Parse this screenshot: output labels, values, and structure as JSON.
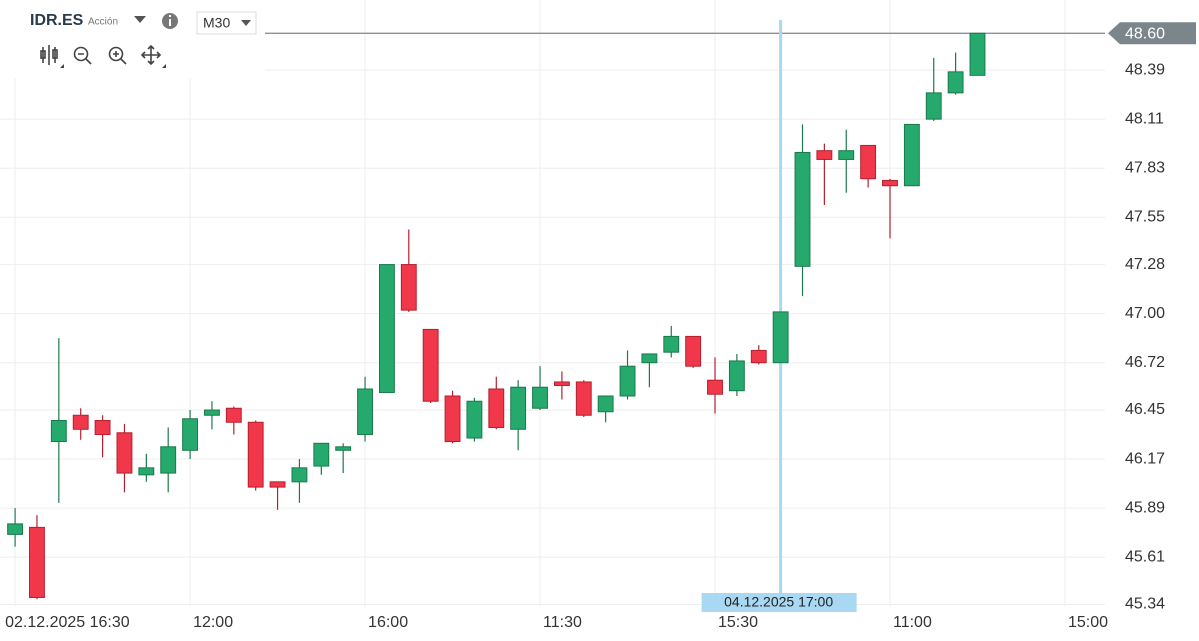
{
  "header": {
    "symbol": "IDR.ES",
    "asset_type": "Acción",
    "timeframe": "M30"
  },
  "chart_data": {
    "type": "candlestick",
    "open": [
      45.74,
      45.78,
      46.27,
      46.42,
      46.39,
      46.32,
      46.08,
      46.09,
      46.22,
      46.42,
      46.46,
      46.38,
      46.04,
      46.04,
      46.13,
      46.22,
      46.31,
      46.55,
      47.28,
      46.91,
      46.53,
      46.29,
      46.57,
      46.34,
      46.46,
      46.61,
      46.61,
      46.44,
      46.53,
      46.72,
      46.78,
      46.87,
      46.62,
      46.56,
      46.79,
      46.72,
      47.27,
      47.93,
      47.88,
      47.96,
      47.76,
      47.73,
      48.11,
      48.26,
      48.36
    ],
    "high": [
      45.89,
      45.85,
      46.86,
      46.46,
      46.42,
      46.37,
      46.2,
      46.35,
      46.45,
      46.5,
      46.47,
      46.39,
      46.04,
      46.17,
      46.26,
      46.26,
      46.64,
      47.28,
      47.48,
      46.91,
      46.56,
      46.52,
      46.64,
      46.62,
      46.7,
      46.67,
      46.62,
      46.53,
      46.79,
      46.77,
      46.93,
      46.87,
      46.75,
      46.77,
      46.82,
      47.01,
      48.08,
      47.97,
      48.05,
      47.96,
      47.77,
      48.08,
      48.46,
      48.49,
      48.6
    ],
    "low": [
      45.67,
      45.37,
      45.92,
      46.28,
      46.18,
      45.98,
      46.04,
      45.98,
      46.17,
      46.34,
      46.31,
      45.99,
      45.88,
      45.92,
      46.08,
      46.09,
      46.27,
      46.55,
      47.01,
      46.49,
      46.26,
      46.27,
      46.34,
      46.22,
      46.45,
      46.51,
      46.41,
      46.38,
      46.51,
      46.58,
      46.75,
      46.69,
      46.43,
      46.53,
      46.71,
      46.72,
      47.1,
      47.62,
      47.69,
      47.72,
      47.43,
      47.73,
      48.1,
      48.25,
      48.36
    ],
    "close": [
      45.8,
      45.38,
      46.39,
      46.34,
      46.31,
      46.09,
      46.12,
      46.24,
      46.4,
      46.45,
      46.38,
      46.01,
      46.01,
      46.12,
      46.26,
      46.24,
      46.57,
      47.28,
      47.02,
      46.5,
      46.27,
      46.5,
      46.35,
      46.58,
      46.58,
      46.59,
      46.42,
      46.53,
      46.7,
      46.77,
      46.87,
      46.7,
      46.54,
      46.73,
      46.72,
      47.01,
      47.92,
      47.88,
      47.93,
      47.77,
      47.73,
      48.08,
      48.26,
      48.38,
      48.6
    ],
    "up_color": "#26a96c",
    "down_color": "#f0384a",
    "xlim": [
      -0.69,
      49.83
    ],
    "xticks": [
      {
        "value": 0,
        "label": "02.12.2025 16:30"
      },
      {
        "value": 8,
        "label": "12:00"
      },
      {
        "value": 16,
        "label": "16:00"
      },
      {
        "value": 24,
        "label": "11:30"
      },
      {
        "value": 32,
        "label": "15:30"
      },
      {
        "value": 40,
        "label": "11:00"
      },
      {
        "value": 48,
        "label": "15:00"
      }
    ],
    "ylim": [
      45.28,
      48.79
    ],
    "yticks": [
      48.39,
      48.11,
      47.83,
      47.55,
      47.28,
      {
        "value": 47,
        "label": "47.00"
      },
      46.72,
      46.45,
      46.17,
      45.89,
      45.61,
      45.34
    ],
    "grid": true,
    "crosshair": {
      "x": 35,
      "label": "04.12.2025 17:00"
    },
    "last_price": {
      "value": 48.6,
      "label": "48.60"
    }
  }
}
